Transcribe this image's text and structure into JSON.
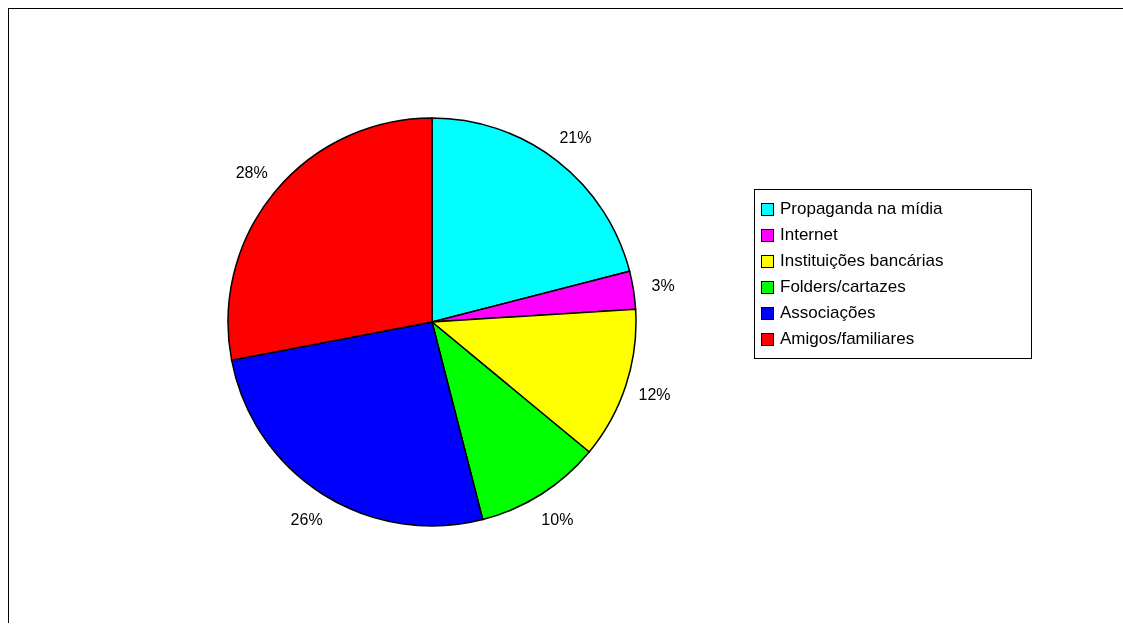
{
  "chart_data": {
    "type": "pie",
    "categories": [
      "Propaganda na mídia",
      "Internet",
      "Instituições bancárias",
      "Folders/cartazes",
      "Associações",
      "Amigos/familiares"
    ],
    "values": [
      21,
      3,
      12,
      10,
      26,
      28
    ],
    "colors": [
      "#00ffff",
      "#ff00ff",
      "#ffff00",
      "#00ff00",
      "#0000ff",
      "#ff0000"
    ],
    "value_labels": [
      "21%",
      "3%",
      "12%",
      "10%",
      "26%",
      "28%"
    ],
    "legend": "right"
  }
}
